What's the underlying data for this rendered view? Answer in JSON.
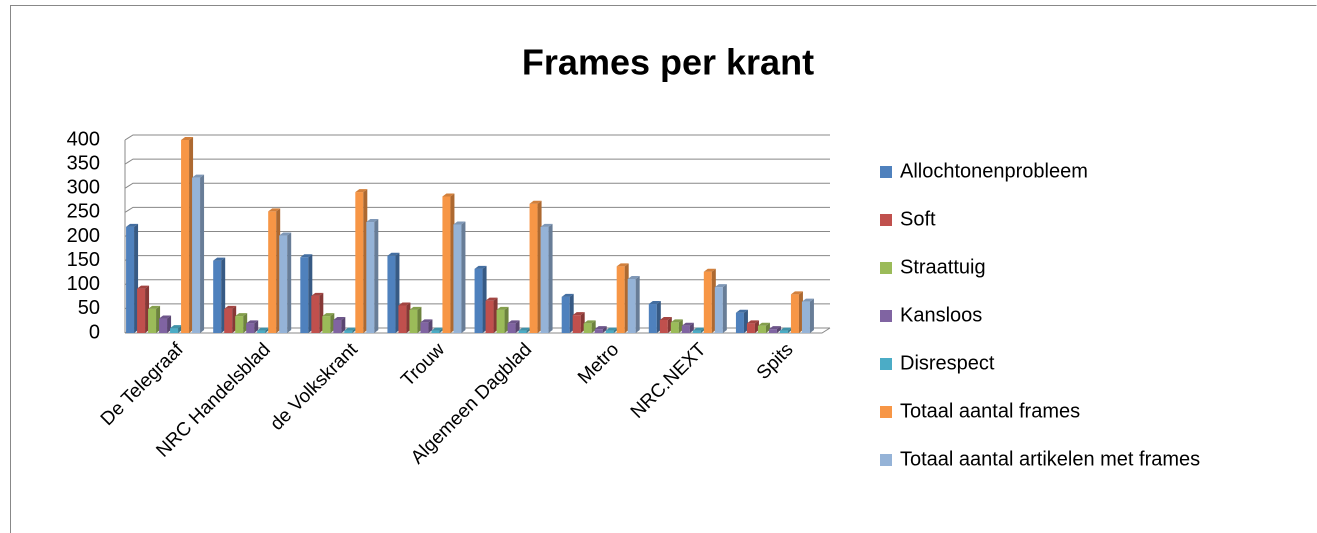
{
  "chart_data": {
    "type": "bar3d",
    "title": "Frames per krant",
    "categories": [
      "De Telegraaf",
      "NRC Handelsblad",
      "de Volkskrant",
      "Trouw",
      "Algemeen Dagblad",
      "Metro",
      "NRC.NEXT",
      "Spits"
    ],
    "series": [
      {
        "name": "Allochtonenprobleem",
        "color": "#4f81bd",
        "values": [
          220,
          150,
          157,
          160,
          133,
          75,
          60,
          42
        ]
      },
      {
        "name": "Soft",
        "color": "#c0504d",
        "values": [
          92,
          50,
          77,
          57,
          67,
          37,
          27,
          20
        ]
      },
      {
        "name": "Straattuig",
        "color": "#9bbb59",
        "values": [
          50,
          35,
          35,
          48,
          48,
          20,
          22,
          15
        ]
      },
      {
        "name": "Kansloos",
        "color": "#8064a2",
        "values": [
          30,
          20,
          27,
          22,
          20,
          8,
          15,
          8
        ]
      },
      {
        "name": "Disrespect",
        "color": "#4bacc6",
        "values": [
          10,
          5,
          5,
          5,
          5,
          5,
          5,
          5
        ]
      },
      {
        "name": "Totaal aantal frames",
        "color": "#f79646",
        "values": [
          400,
          252,
          292,
          283,
          268,
          138,
          127,
          80
        ]
      },
      {
        "name": "Totaal aantal artikelen met frames",
        "color": "#95b3d7",
        "values": [
          322,
          202,
          230,
          225,
          220,
          112,
          95,
          65
        ]
      }
    ],
    "ylim": [
      0,
      400
    ],
    "yticks": [
      0,
      50,
      100,
      150,
      200,
      250,
      300,
      350,
      400
    ],
    "grid": true,
    "legend": "right"
  }
}
